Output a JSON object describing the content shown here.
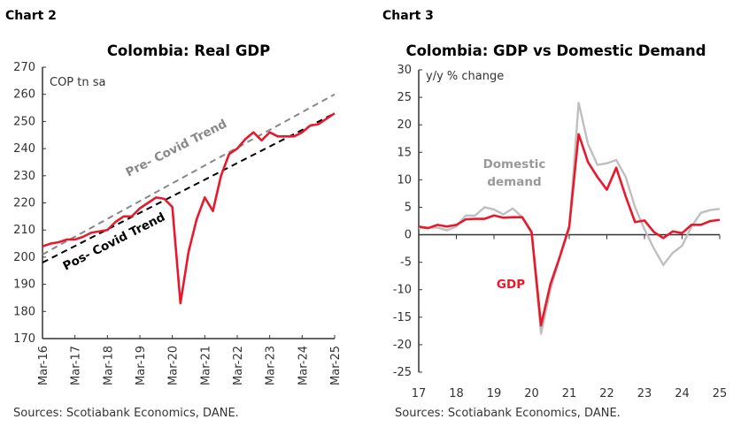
{
  "chart_data": [
    {
      "type": "line",
      "label": "Chart 2",
      "title": "Colombia: Real GDP",
      "ylabel": "COP tn sa",
      "ylim": [
        170,
        270
      ],
      "yticks": [
        "170",
        "180",
        "190",
        "200",
        "210",
        "220",
        "230",
        "240",
        "250",
        "260",
        "270"
      ],
      "xticks": [
        "Mar-16",
        "Mar-17",
        "Mar-18",
        "Mar-19",
        "Mar-20",
        "Mar-21",
        "Mar-22",
        "Mar-23",
        "Mar-24",
        "Mar-25"
      ],
      "grid": false,
      "source": "Sources: Scotiabank Economics, DANE.",
      "series": [
        {
          "name": "",
          "color": "#e8192c",
          "style": "solid",
          "values": [
            204,
            205,
            205.5,
            206.5,
            206.5,
            207.5,
            209,
            209.5,
            210,
            213,
            215,
            215,
            218,
            220,
            222,
            221.5,
            218.5,
            183,
            202,
            214,
            222,
            217,
            230,
            238,
            240,
            243.5,
            246,
            243,
            246,
            244.5,
            244.5,
            244.5,
            246,
            248.5,
            249,
            251,
            253
          ]
        },
        {
          "name": "Pre- Covid Trend",
          "color": "#888888",
          "style": "dashed",
          "values": [
            201,
            260
          ]
        },
        {
          "name": "Pos- Covid Trend",
          "color": "#000000",
          "style": "dashed",
          "values": [
            198,
            253
          ]
        }
      ]
    },
    {
      "type": "line",
      "label": "Chart 3",
      "title": "Colombia: GDP vs Domestic Demand",
      "ylabel": "y/y % change",
      "ylim": [
        -25,
        30
      ],
      "yticks": [
        "-25",
        "-20",
        "-15",
        "-10",
        "-5",
        "0",
        "5",
        "10",
        "15",
        "20",
        "25",
        "30"
      ],
      "xlim": [
        17,
        25
      ],
      "xticks": [
        "17",
        "18",
        "19",
        "20",
        "21",
        "22",
        "23",
        "24",
        "25"
      ],
      "grid": false,
      "source": "Sources: Scotiabank Economics, DANE.",
      "x": [
        17,
        17.25,
        17.5,
        17.75,
        18,
        18.25,
        18.5,
        18.75,
        19,
        19.25,
        19.5,
        19.75,
        20,
        20.25,
        20.5,
        20.75,
        21,
        21.25,
        21.5,
        21.75,
        22,
        22.25,
        22.5,
        22.75,
        23,
        23.25,
        23.5,
        23.75,
        24,
        24.25,
        24.5,
        24.75,
        25
      ],
      "series": [
        {
          "name": "Domestic demand",
          "color": "#bfbfbf",
          "values": [
            1.2,
            1.3,
            1.3,
            0.8,
            1.5,
            3.5,
            3.5,
            5.0,
            4.6,
            3.7,
            4.8,
            3.2,
            0.3,
            -18,
            -10,
            -4,
            1.0,
            24,
            16.5,
            12.7,
            13,
            13.6,
            10.5,
            5,
            1,
            -2.5,
            -5.5,
            -3.3,
            -2,
            1.5,
            4,
            4.5,
            4.7
          ]
        },
        {
          "name": "GDP",
          "color": "#e8192c",
          "values": [
            1.5,
            1.2,
            1.8,
            1.5,
            1.8,
            2.8,
            2.9,
            2.9,
            3.5,
            3.1,
            3.2,
            3.2,
            0.5,
            -16.5,
            -9,
            -4,
            1.5,
            18.3,
            13.2,
            10.5,
            8.2,
            12.2,
            7,
            2.3,
            2.6,
            0.5,
            -0.6,
            0.6,
            0.3,
            1.8,
            1.8,
            2.5,
            2.7
          ]
        }
      ]
    }
  ]
}
